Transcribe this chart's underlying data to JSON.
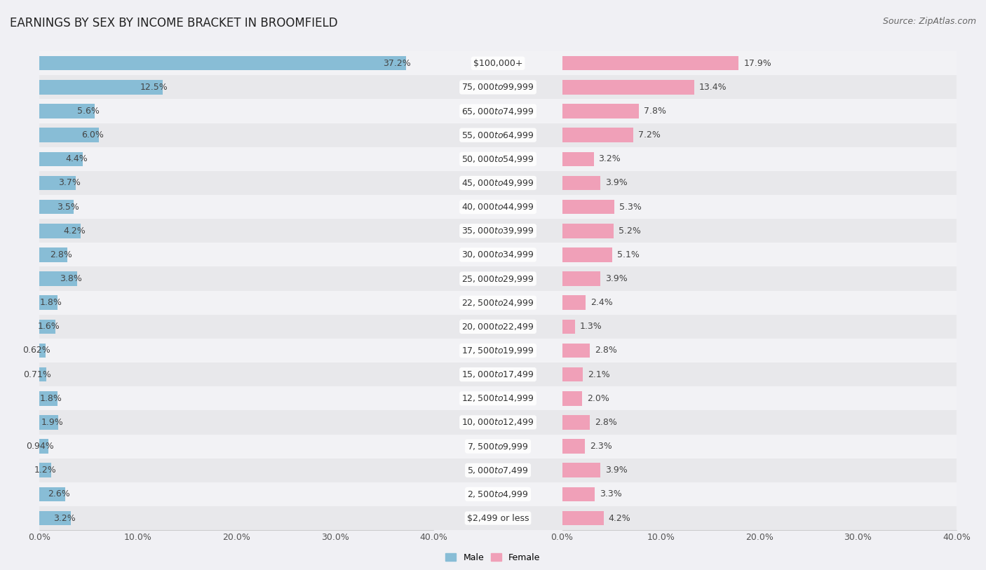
{
  "title": "EARNINGS BY SEX BY INCOME BRACKET IN BROOMFIELD",
  "source": "Source: ZipAtlas.com",
  "categories": [
    "$2,499 or less",
    "$2,500 to $4,999",
    "$5,000 to $7,499",
    "$7,500 to $9,999",
    "$10,000 to $12,499",
    "$12,500 to $14,999",
    "$15,000 to $17,499",
    "$17,500 to $19,999",
    "$20,000 to $22,499",
    "$22,500 to $24,999",
    "$25,000 to $29,999",
    "$30,000 to $34,999",
    "$35,000 to $39,999",
    "$40,000 to $44,999",
    "$45,000 to $49,999",
    "$50,000 to $54,999",
    "$55,000 to $64,999",
    "$65,000 to $74,999",
    "$75,000 to $99,999",
    "$100,000+"
  ],
  "male_values": [
    3.2,
    2.6,
    1.2,
    0.94,
    1.9,
    1.8,
    0.71,
    0.62,
    1.6,
    1.8,
    3.8,
    2.8,
    4.2,
    3.5,
    3.7,
    4.4,
    6.0,
    5.6,
    12.5,
    37.2
  ],
  "female_values": [
    4.2,
    3.3,
    3.9,
    2.3,
    2.8,
    2.0,
    2.1,
    2.8,
    1.3,
    2.4,
    3.9,
    5.1,
    5.2,
    5.3,
    3.9,
    3.2,
    7.2,
    7.8,
    13.4,
    17.9
  ],
  "male_color": "#88bdd6",
  "female_color": "#f0a0b8",
  "male_label": "Male",
  "female_label": "Female",
  "x_max": 40.0,
  "row_color_even": "#e8e8eb",
  "row_color_odd": "#f2f2f5",
  "bg_color": "#f0f0f4",
  "title_fontsize": 12,
  "source_fontsize": 9,
  "bar_label_fontsize": 9,
  "tick_fontsize": 9,
  "cat_label_fontsize": 9
}
